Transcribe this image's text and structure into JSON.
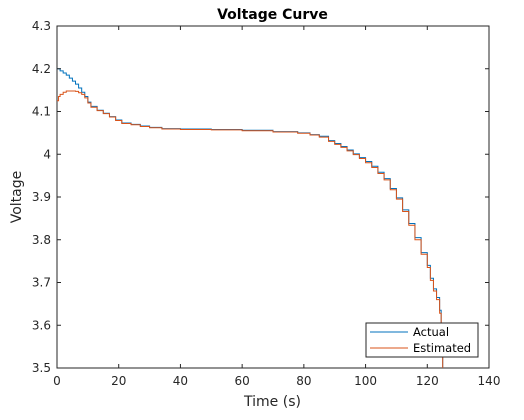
{
  "chart_data": {
    "type": "line",
    "title": "Voltage Curve",
    "xlabel": "Time (s)",
    "ylabel": "Voltage",
    "xlim": [
      0,
      140
    ],
    "ylim": [
      3.5,
      4.3
    ],
    "xticks": [
      0,
      20,
      40,
      60,
      80,
      100,
      120,
      140
    ],
    "yticks": [
      3.5,
      3.6,
      3.7,
      3.8,
      3.9,
      4.0,
      4.1,
      4.2,
      4.3
    ],
    "xtick_labels": [
      "0",
      "20",
      "40",
      "60",
      "80",
      "100",
      "120",
      "140"
    ],
    "ytick_labels": [
      "3.5",
      "3.6",
      "3.7",
      "3.8",
      "3.9",
      "4",
      "4.1",
      "4.2",
      "4.3"
    ],
    "grid": false,
    "legend_position": "bottom-right",
    "step": true,
    "series": [
      {
        "name": "Actual",
        "color": "#0072bd",
        "points": [
          [
            0,
            4.2
          ],
          [
            1,
            4.195
          ],
          [
            2,
            4.19
          ],
          [
            3,
            4.185
          ],
          [
            4,
            4.178
          ],
          [
            5,
            4.171
          ],
          [
            6,
            4.164
          ],
          [
            7,
            4.155
          ],
          [
            8,
            4.145
          ],
          [
            9,
            4.135
          ],
          [
            10,
            4.122
          ],
          [
            11,
            4.112
          ],
          [
            13,
            4.103
          ],
          [
            15,
            4.096
          ],
          [
            17,
            4.088
          ],
          [
            19,
            4.08
          ],
          [
            21,
            4.073
          ],
          [
            24,
            4.07
          ],
          [
            27,
            4.066
          ],
          [
            30,
            4.063
          ],
          [
            34,
            4.06
          ],
          [
            40,
            4.059
          ],
          [
            50,
            4.058
          ],
          [
            60,
            4.056
          ],
          [
            70,
            4.053
          ],
          [
            78,
            4.05
          ],
          [
            82,
            4.046
          ],
          [
            85,
            4.042
          ],
          [
            88,
            4.032
          ],
          [
            90,
            4.025
          ],
          [
            92,
            4.018
          ],
          [
            94,
            4.01
          ],
          [
            96,
            4.001
          ],
          [
            98,
            3.992
          ],
          [
            100,
            3.983
          ],
          [
            102,
            3.972
          ],
          [
            104,
            3.958
          ],
          [
            106,
            3.943
          ],
          [
            108,
            3.92
          ],
          [
            110,
            3.898
          ],
          [
            112,
            3.87
          ],
          [
            114,
            3.838
          ],
          [
            116,
            3.805
          ],
          [
            118,
            3.77
          ],
          [
            120,
            3.74
          ],
          [
            121,
            3.71
          ],
          [
            122,
            3.685
          ],
          [
            123,
            3.665
          ],
          [
            124,
            3.635
          ],
          [
            124.5,
            3.6
          ],
          [
            124.8,
            3.55
          ],
          [
            125,
            3.5
          ]
        ]
      },
      {
        "name": "Estimated",
        "color": "#d95319",
        "points": [
          [
            0,
            4.125
          ],
          [
            0.5,
            4.135
          ],
          [
            1,
            4.14
          ],
          [
            2,
            4.145
          ],
          [
            3,
            4.148
          ],
          [
            6,
            4.147
          ],
          [
            7,
            4.144
          ],
          [
            8,
            4.14
          ],
          [
            9,
            4.132
          ],
          [
            10,
            4.12
          ],
          [
            11,
            4.11
          ],
          [
            13,
            4.102
          ],
          [
            15,
            4.095
          ],
          [
            17,
            4.087
          ],
          [
            19,
            4.079
          ],
          [
            21,
            4.072
          ],
          [
            24,
            4.069
          ],
          [
            27,
            4.065
          ],
          [
            30,
            4.062
          ],
          [
            34,
            4.059
          ],
          [
            40,
            4.058
          ],
          [
            50,
            4.057
          ],
          [
            60,
            4.055
          ],
          [
            70,
            4.052
          ],
          [
            78,
            4.049
          ],
          [
            82,
            4.045
          ],
          [
            85,
            4.04
          ],
          [
            88,
            4.03
          ],
          [
            90,
            4.023
          ],
          [
            92,
            4.016
          ],
          [
            94,
            4.008
          ],
          [
            96,
            3.999
          ],
          [
            98,
            3.99
          ],
          [
            100,
            3.98
          ],
          [
            102,
            3.969
          ],
          [
            104,
            3.955
          ],
          [
            106,
            3.94
          ],
          [
            108,
            3.917
          ],
          [
            110,
            3.895
          ],
          [
            112,
            3.866
          ],
          [
            114,
            3.834
          ],
          [
            116,
            3.8
          ],
          [
            118,
            3.766
          ],
          [
            120,
            3.735
          ],
          [
            121,
            3.705
          ],
          [
            122,
            3.68
          ],
          [
            123,
            3.66
          ],
          [
            124,
            3.628
          ],
          [
            124.5,
            3.59
          ],
          [
            124.8,
            3.545
          ],
          [
            125,
            3.5
          ]
        ]
      }
    ]
  }
}
